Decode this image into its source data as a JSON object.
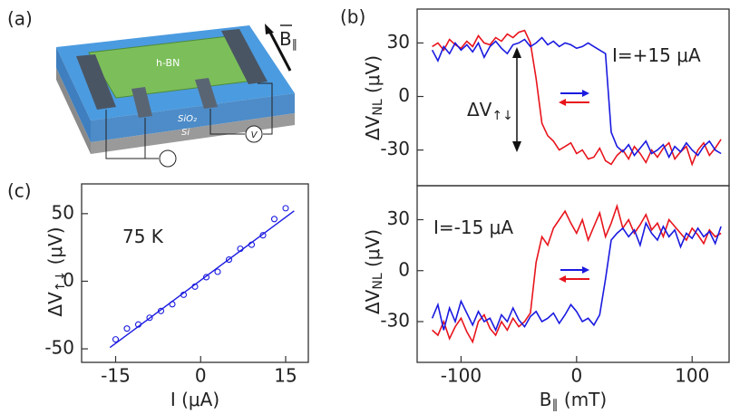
{
  "panel_labels": [
    "(a)",
    "(b)",
    "(c)"
  ],
  "schematic": {
    "layer_top": "h-BN",
    "layer_mid": "SiO₂",
    "layer_bottom": "Si",
    "meter": "V",
    "field": "B",
    "field_sub": "∥"
  },
  "chart_data": [
    {
      "type": "line",
      "ylabel": [
        "ΔV",
        "NL",
        " (μV)"
      ],
      "x": [
        -125,
        -120,
        -115,
        -110,
        -105,
        -100,
        -95,
        -90,
        -85,
        -80,
        -75,
        -70,
        -65,
        -60,
        -55,
        -50,
        -45,
        -40,
        -35,
        -30,
        -25,
        -20,
        -15,
        -10,
        -5,
        0,
        5,
        10,
        15,
        20,
        25,
        30,
        35,
        40,
        45,
        50,
        55,
        60,
        65,
        70,
        75,
        80,
        85,
        90,
        95,
        100,
        105,
        110,
        115,
        120,
        125
      ],
      "xlim": [
        -138,
        132
      ],
      "ylim": [
        -50,
        49
      ],
      "yticks": [
        -30,
        0,
        30
      ],
      "series": [
        {
          "color": "#e8141c",
          "values": [
            28,
            30,
            26,
            32,
            29,
            27,
            31,
            28,
            34,
            30,
            29,
            33,
            31,
            35,
            33,
            36,
            37,
            30,
            10,
            -15,
            -22,
            -25,
            -30,
            -28,
            -26,
            -32,
            -30,
            -35,
            -34,
            -29,
            -36,
            -38,
            -33,
            -30,
            -35,
            -28,
            -32,
            -37,
            -30,
            -34,
            -29,
            -26,
            -35,
            -31,
            -28,
            -38,
            -30,
            -26,
            -33,
            -29,
            -24
          ]
        },
        {
          "color": "#1a1ae0",
          "values": [
            26,
            20,
            28,
            24,
            30,
            26,
            29,
            25,
            30,
            22,
            28,
            31,
            27,
            24,
            29,
            30,
            32,
            28,
            30,
            33,
            29,
            31,
            28,
            30,
            29,
            27,
            28,
            30,
            28,
            26,
            24,
            -20,
            -28,
            -31,
            -27,
            -33,
            -29,
            -25,
            -32,
            -30,
            -27,
            -34,
            -28,
            -31,
            -26,
            -30,
            -33,
            -28,
            -25,
            -30,
            -32
          ]
        }
      ],
      "annotations": [
        {
          "text": "I=+15 μA"
        },
        {
          "text": "ΔV",
          "sub": "↑↓"
        }
      ]
    },
    {
      "type": "line",
      "ylabel": [
        "ΔV",
        "NL",
        " (μV)"
      ],
      "xlabel": [
        "B",
        "∥",
        " (mT)"
      ],
      "x": [
        -125,
        -120,
        -115,
        -110,
        -105,
        -100,
        -95,
        -90,
        -85,
        -80,
        -75,
        -70,
        -65,
        -60,
        -55,
        -50,
        -45,
        -40,
        -35,
        -30,
        -25,
        -20,
        -15,
        -10,
        -5,
        0,
        5,
        10,
        15,
        20,
        25,
        30,
        35,
        40,
        45,
        50,
        55,
        60,
        65,
        70,
        75,
        80,
        85,
        90,
        95,
        100,
        105,
        110,
        115,
        120,
        125
      ],
      "xlim": [
        -138,
        132
      ],
      "xticks": [
        -100,
        0,
        100
      ],
      "ylim": [
        -54,
        50
      ],
      "yticks": [
        -30,
        0,
        30
      ],
      "series": [
        {
          "color": "#e8141c",
          "values": [
            -35,
            -38,
            -30,
            -40,
            -33,
            -28,
            -36,
            -42,
            -30,
            -26,
            -34,
            -38,
            -30,
            -35,
            -28,
            -33,
            -30,
            -25,
            5,
            20,
            15,
            25,
            30,
            35,
            28,
            22,
            30,
            18,
            26,
            34,
            20,
            28,
            38,
            25,
            30,
            22,
            27,
            33,
            24,
            28,
            20,
            30,
            26,
            22,
            18,
            25,
            21,
            16,
            24,
            20,
            22
          ]
        },
        {
          "color": "#1a1ae0",
          "values": [
            -28,
            -20,
            -35,
            -22,
            -30,
            -18,
            -25,
            -32,
            -24,
            -30,
            -28,
            -35,
            -26,
            -30,
            -22,
            -29,
            -33,
            -27,
            -24,
            -30,
            -28,
            -25,
            -31,
            -26,
            -20,
            -24,
            -30,
            -28,
            -32,
            -26,
            -5,
            18,
            22,
            25,
            20,
            24,
            15,
            28,
            22,
            18,
            26,
            20,
            24,
            14,
            22,
            19,
            25,
            20,
            23,
            16,
            26
          ]
        }
      ],
      "annotations": [
        {
          "text": "I=-15 μA"
        }
      ]
    },
    {
      "type": "scatter",
      "ylabel": [
        "ΔV",
        "↑↓",
        " (μV)"
      ],
      "xlabel": "I (μA)",
      "color": "#1a1ae0",
      "x": [
        -15,
        -13,
        -11,
        -9,
        -7,
        -5,
        -3,
        -1,
        1,
        3,
        5,
        7,
        9,
        11,
        13,
        15
      ],
      "values": [
        -43,
        -35,
        -32,
        -27,
        -22,
        -17,
        -10,
        -4,
        3,
        7,
        16,
        24,
        27,
        34,
        46,
        54
      ],
      "fit": {
        "x": [
          -16,
          16.5
        ],
        "values": [
          -49,
          52
        ]
      },
      "xlim": [
        -21,
        19
      ],
      "xticks": [
        -15,
        0,
        15
      ],
      "ylim": [
        -60,
        72
      ],
      "yticks": [
        -50,
        0,
        50
      ],
      "annotations": [
        {
          "text": "75 K"
        }
      ]
    }
  ]
}
